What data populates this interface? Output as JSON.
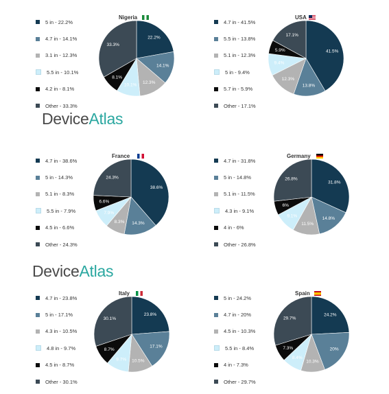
{
  "colors": [
    "#143a52",
    "#5a8098",
    "#b3b3b3",
    "#cdeefa",
    "#0b0b0b",
    "#3c4a55"
  ],
  "brand": {
    "part1": "Device",
    "part2": "Atlas"
  },
  "chart_data": [
    {
      "type": "pie",
      "title": "Nigeria",
      "flag": "nigeria-flag",
      "labels": [
        "5 in - 22.2%",
        "4.7 in - 14.1%",
        "3.1 in - 12.3%",
        "5.5 in - 10.1%",
        "4.2 in - 8.1%",
        "Other - 33.3%"
      ],
      "values": [
        22.2,
        14.1,
        12.3,
        10.1,
        8.1,
        33.3
      ],
      "value_labels": [
        "22.2%",
        "14.1%",
        "12.3%",
        "10.1%",
        "8.1%",
        "33.3%"
      ]
    },
    {
      "type": "pie",
      "title": "USA",
      "flag": "usa-flag",
      "labels": [
        "4.7 in - 41.5%",
        "5.5 in - 13.8%",
        "5.1 in - 12.3%",
        "5 in - 9.4%",
        "5.7 in - 5.9%",
        "Other - 17.1%"
      ],
      "values": [
        41.5,
        13.8,
        12.3,
        9.4,
        5.9,
        17.1
      ],
      "value_labels": [
        "41.5%",
        "13.8%",
        "12.3%",
        "9.4%",
        "5.9%",
        "17.1%"
      ]
    },
    {
      "type": "pie",
      "title": "France",
      "flag": "france-flag",
      "labels": [
        "4.7 in - 38.6%",
        "5 in - 14.3%",
        "5.1 in - 8.3%",
        "5.5 in - 7.9%",
        "4.5 in - 6.6%",
        "Other - 24.3%"
      ],
      "values": [
        38.6,
        14.3,
        8.3,
        7.9,
        6.6,
        24.3
      ],
      "value_labels": [
        "38.6%",
        "14.3%",
        "8.3%",
        "7.9%",
        "6.6%",
        "24.3%"
      ]
    },
    {
      "type": "pie",
      "title": "Germany",
      "flag": "germany-flag",
      "labels": [
        "4.7 in - 31.8%",
        "5 in - 14.8%",
        "5.1 in - 11.5%",
        "4.3 in - 9.1%",
        "4 in - 6%",
        "Other - 26.8%"
      ],
      "values": [
        31.8,
        14.8,
        11.5,
        9.1,
        6.0,
        26.8
      ],
      "value_labels": [
        "31.8%",
        "14.8%",
        "11.5%",
        "9.1%",
        "6%",
        "26.8%"
      ]
    },
    {
      "type": "pie",
      "title": "Italy",
      "flag": "italy-flag",
      "labels": [
        "4.7 in - 23.8%",
        "5 in - 17.1%",
        "4.3 in - 10.5%",
        "4.8 in - 9.7%",
        "4.5 in - 8.7%",
        "Other - 30.1%"
      ],
      "values": [
        23.8,
        17.1,
        10.5,
        9.7,
        8.7,
        30.1
      ],
      "value_labels": [
        "23.8%",
        "17.1%",
        "10.5%",
        "9.7%",
        "8.7%",
        "30.1%"
      ]
    },
    {
      "type": "pie",
      "title": "Spain",
      "flag": "spain-flag",
      "labels": [
        "5 in - 24.2%",
        "4.7 in - 20%",
        "4.5 in - 10.3%",
        "5.5 in - 8.4%",
        "4 in - 7.3%",
        "Other - 29.7%"
      ],
      "values": [
        24.2,
        20,
        10.3,
        8.4,
        7.3,
        29.7
      ],
      "value_labels": [
        "24.2%",
        "20%",
        "10.3%",
        "8.4%",
        "7.3%",
        "29.7%"
      ]
    }
  ]
}
